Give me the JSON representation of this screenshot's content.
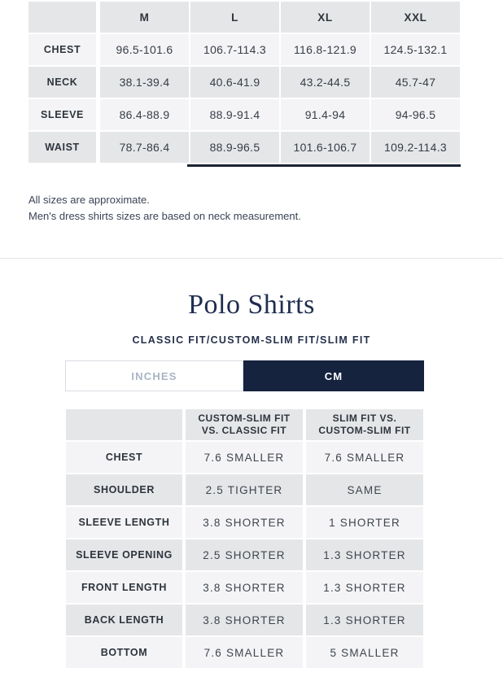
{
  "colors": {
    "navy_accent": "#16233e",
    "scrollbar": "#1a2334",
    "row_dark": "#e5e6e8",
    "row_light": "#f4f4f6",
    "inactive_tab_text": "#a9b5c5"
  },
  "size_table": {
    "columns": [
      "M",
      "L",
      "XL",
      "XXL"
    ],
    "rows": [
      {
        "label": "CHEST",
        "values": [
          "96.5-101.6",
          "106.7-114.3",
          "116.8-121.9",
          "124.5-132.1"
        ]
      },
      {
        "label": "NECK",
        "values": [
          "38.1-39.4",
          "40.6-41.9",
          "43.2-44.5",
          "45.7-47"
        ]
      },
      {
        "label": "SLEEVE",
        "values": [
          "86.4-88.9",
          "88.9-91.4",
          "91.4-94",
          "94-96.5"
        ]
      },
      {
        "label": "WAIST",
        "values": [
          "78.7-86.4",
          "88.9-96.5",
          "101.6-106.7",
          "109.2-114.3"
        ]
      }
    ]
  },
  "notes": {
    "line1": "All sizes are approximate.",
    "line2": "Men's dress shirts sizes are based on neck measurement."
  },
  "polo_section": {
    "title": "Polo Shirts",
    "subtitle": "CLASSIC FIT/CUSTOM-SLIM FIT/SLIM FIT",
    "unit_toggle": {
      "inches_label": "INCHES",
      "cm_label": "CM",
      "selected": "CM"
    },
    "fit_table": {
      "columns": [
        {
          "line1": "CUSTOM-SLIM FIT",
          "line2": "VS. CLASSIC FIT"
        },
        {
          "line1": "SLIM FIT VS.",
          "line2": "CUSTOM-SLIM FIT"
        }
      ],
      "rows": [
        {
          "label": "CHEST",
          "values": [
            "7.6 SMALLER",
            "7.6 SMALLER"
          ]
        },
        {
          "label": "SHOULDER",
          "values": [
            "2.5 TIGHTER",
            "SAME"
          ]
        },
        {
          "label": "SLEEVE LENGTH",
          "values": [
            "3.8 SHORTER",
            "1 SHORTER"
          ]
        },
        {
          "label": "SLEEVE OPENING",
          "values": [
            "2.5 SHORTER",
            "1.3 SHORTER"
          ]
        },
        {
          "label": "FRONT LENGTH",
          "values": [
            "3.8 SHORTER",
            "1.3 SHORTER"
          ]
        },
        {
          "label": "BACK LENGTH",
          "values": [
            "3.8 SHORTER",
            "1.3 SHORTER"
          ]
        },
        {
          "label": "BOTTOM",
          "values": [
            "7.6 SMALLER",
            "5 SMALLER"
          ]
        }
      ]
    }
  }
}
